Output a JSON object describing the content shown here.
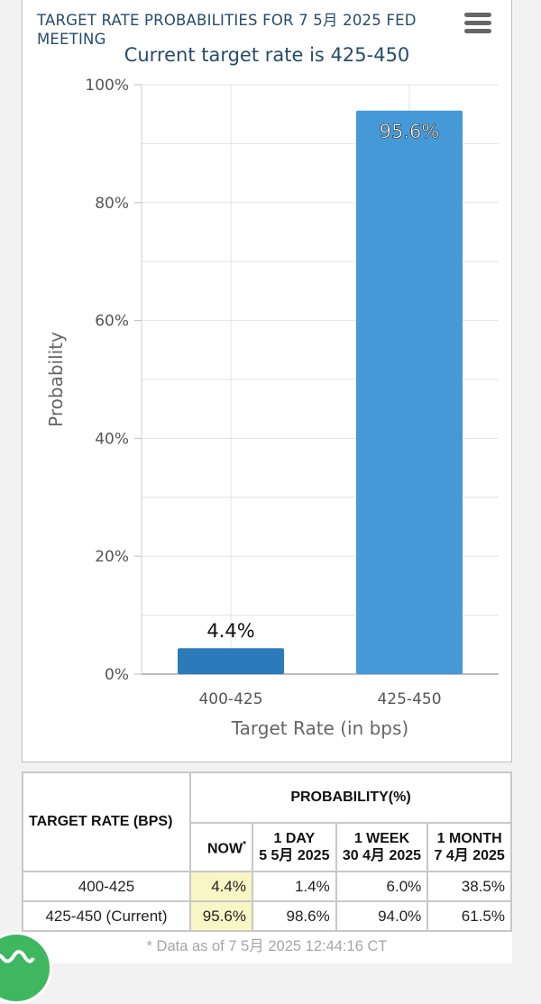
{
  "chart": {
    "title": "TARGET RATE PROBABILITIES FOR 7 5月 2025 FED MEETING",
    "subtitle": "Current target rate is 425-450"
  },
  "chart_data": {
    "type": "bar",
    "title": "TARGET RATE PROBABILITIES FOR 7 5月 2025 FED MEETING",
    "subtitle": "Current target rate is 425-450",
    "xlabel": "Target Rate (in bps)",
    "ylabel": "Probability",
    "categories": [
      "400-425",
      "425-450"
    ],
    "values": [
      4.4,
      95.6
    ],
    "data_labels": [
      "4.4%",
      "95.6%"
    ],
    "ylim": [
      0,
      100
    ],
    "yticks": [
      "0%",
      "20%",
      "40%",
      "60%",
      "80%",
      "100%"
    ],
    "bar_colors": [
      "#2b7ab9",
      "#4499d6"
    ],
    "grid": true,
    "legend": "none"
  },
  "table": {
    "header_target": "TARGET RATE (BPS)",
    "header_probability": "PROBABILITY(%)",
    "sub_headers": [
      {
        "line1": "NOW",
        "line2": "",
        "mark": "*"
      },
      {
        "line1": "1 DAY",
        "line2": "5 5月 2025"
      },
      {
        "line1": "1 WEEK",
        "line2": "30 4月 2025"
      },
      {
        "line1": "1 MONTH",
        "line2": "7 4月 2025"
      }
    ],
    "rows": [
      {
        "rate": "400-425",
        "now": "4.4%",
        "day": "1.4%",
        "week": "6.0%",
        "month": "38.5%"
      },
      {
        "rate": "425-450 (Current)",
        "now": "95.6%",
        "day": "98.6%",
        "week": "94.0%",
        "month": "61.5%"
      }
    ],
    "note": "* Data as of 7 5月 2025 12:44:16 CT"
  },
  "colors": {
    "title": "#274b6d",
    "now_highlight": "#f9f6c5",
    "badge": "#3fb760"
  },
  "icons": {
    "menu": "hamburger-menu-icon",
    "badge": "green-round-badge-icon"
  }
}
